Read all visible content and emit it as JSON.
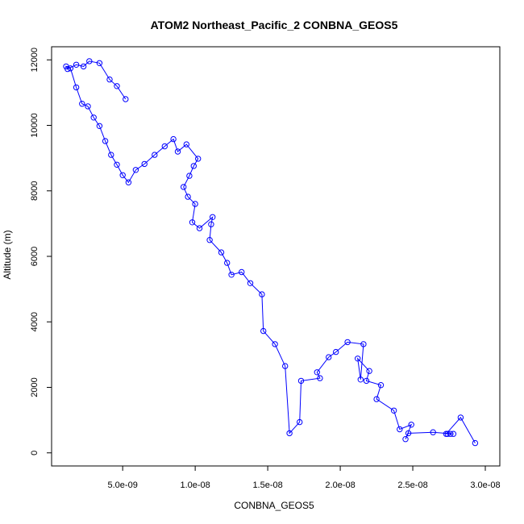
{
  "chart_data": {
    "type": "line",
    "title": "ATOM2 Northeast_Pacific_2 CONBNA_GEOS5",
    "xlabel": "CONBNA_GEOS5",
    "ylabel": "Altitude (m)",
    "xlim": [
      1e-10,
      3.1e-08
    ],
    "ylim": [
      -400,
      12400
    ],
    "x_ticks": [
      5e-09,
      1e-08,
      1.5e-08,
      2e-08,
      2.5e-08,
      3e-08
    ],
    "x_tick_labels": [
      "5.0e-09",
      "1.0e-08",
      "1.5e-08",
      "2.0e-08",
      "2.5e-08",
      "3.0e-08"
    ],
    "y_ticks": [
      0,
      2000,
      4000,
      6000,
      8000,
      10000,
      12000
    ],
    "y_tick_labels": [
      "0",
      "2000",
      "4000",
      "6000",
      "8000",
      "10000",
      "12000"
    ],
    "grid": false,
    "colors": {
      "series": "#0000ff",
      "axis": "#000000"
    },
    "series": [
      {
        "marker": "open-circle",
        "x": [
          2.93e-08,
          2.83e-08,
          2.73e-08,
          2.74e-08,
          2.76e-08,
          2.78e-08,
          2.64e-08,
          2.47e-08,
          2.45e-08,
          2.49e-08,
          2.41e-08,
          2.37e-08,
          2.25e-08,
          2.28e-08,
          2.18e-08,
          2.2e-08,
          2.12e-08,
          2.14e-08,
          2.16e-08,
          2.05e-08,
          1.97e-08,
          1.92e-08,
          1.84e-08,
          1.86e-08,
          1.73e-08,
          1.72e-08,
          1.65e-08,
          1.62e-08,
          1.55e-08,
          1.47e-08,
          1.46e-08,
          1.38e-08,
          1.32e-08,
          1.25e-08,
          1.22e-08,
          1.18e-08,
          1.1e-08,
          1.11e-08,
          1.12e-08,
          1.03e-08,
          9.8e-09,
          1e-08,
          9.5e-09,
          9.2e-09,
          9.6e-09,
          9.9e-09,
          1.02e-08,
          9.4e-09,
          8.8e-09,
          8.5e-09,
          7.9e-09,
          7.2e-09,
          6.5e-09,
          5.9e-09,
          5.4e-09,
          5e-09,
          4.6e-09,
          4.2e-09,
          3.8e-09,
          3.4e-09,
          3e-09,
          2.6e-09,
          2.2e-09,
          1.8e-09,
          1.4e-09,
          1.1e-09,
          1.2e-09,
          1.8e-09,
          2.3e-09,
          2.7e-09,
          3.4e-09,
          4.1e-09,
          4.6e-09,
          5.2e-09
        ],
        "y": [
          300,
          1080,
          580,
          580,
          580,
          580,
          630,
          600,
          420,
          860,
          720,
          1290,
          1640,
          2070,
          2200,
          2500,
          2880,
          2240,
          3320,
          3380,
          3080,
          2920,
          2460,
          2280,
          2200,
          940,
          600,
          2650,
          3320,
          3720,
          4840,
          5180,
          5520,
          5440,
          5800,
          6120,
          6500,
          6980,
          7200,
          6860,
          7040,
          7600,
          7820,
          8120,
          8460,
          8760,
          8980,
          9420,
          9200,
          9580,
          9360,
          9100,
          8820,
          8640,
          8260,
          8480,
          8800,
          9100,
          9520,
          9980,
          10240,
          10580,
          10660,
          11160,
          11740,
          11800,
          11720,
          11850,
          11800,
          11960,
          11900,
          11400,
          11200,
          10800
        ]
      }
    ]
  }
}
